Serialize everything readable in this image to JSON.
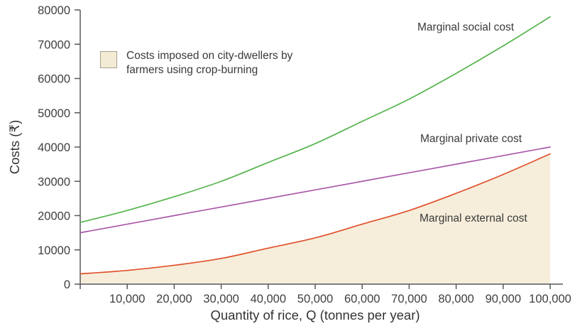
{
  "chart_data": {
    "type": "line",
    "title": "",
    "xlabel": "Quantity of rice, Q (tonnes per year)",
    "ylabel": "Costs (₹)",
    "xlim": [
      0,
      100000
    ],
    "ylim": [
      0,
      80000
    ],
    "grid": false,
    "x": [
      0,
      10000,
      20000,
      30000,
      40000,
      50000,
      60000,
      70000,
      80000,
      90000,
      100000
    ],
    "x_ticks": [
      0,
      10000,
      20000,
      30000,
      40000,
      50000,
      60000,
      70000,
      80000,
      90000,
      100000
    ],
    "x_tick_labels": [
      "",
      "10,000",
      "20,000",
      "30,000",
      "40,000",
      "50,000",
      "60,000",
      "70,000",
      "80,000",
      "90,000",
      "100,000"
    ],
    "y_ticks": [
      0,
      10000,
      20000,
      30000,
      40000,
      50000,
      60000,
      70000,
      80000
    ],
    "y_tick_labels": [
      "0",
      "10000",
      "20000",
      "30000",
      "40000",
      "50000",
      "60000",
      "70000",
      "80000"
    ],
    "axis_color": "#57585b",
    "text_color": "#3e3f41",
    "series": [
      {
        "name": "Marginal social cost",
        "color": "#55b54d",
        "values": [
          18000,
          21500,
          25500,
          30000,
          35500,
          41000,
          47500,
          54000,
          61500,
          69500,
          78000
        ]
      },
      {
        "name": "Marginal private cost",
        "color": "#a958a9",
        "values": [
          15000,
          17500,
          20000,
          22500,
          25000,
          27500,
          30000,
          32500,
          35000,
          37500,
          40000
        ]
      },
      {
        "name": "Marginal external cost",
        "color": "#e0512c",
        "values": [
          3000,
          4000,
          5500,
          7500,
          10500,
          13500,
          17500,
          21500,
          26500,
          32000,
          38000
        ],
        "area_fill": "#f6eedb"
      }
    ],
    "legend": {
      "text": "Costs imposed on city-dwellers by farmers using crop-burning",
      "swatch_fill": "#f4ebd4",
      "swatch_border": "#a49f92",
      "position": "upper-left"
    }
  }
}
